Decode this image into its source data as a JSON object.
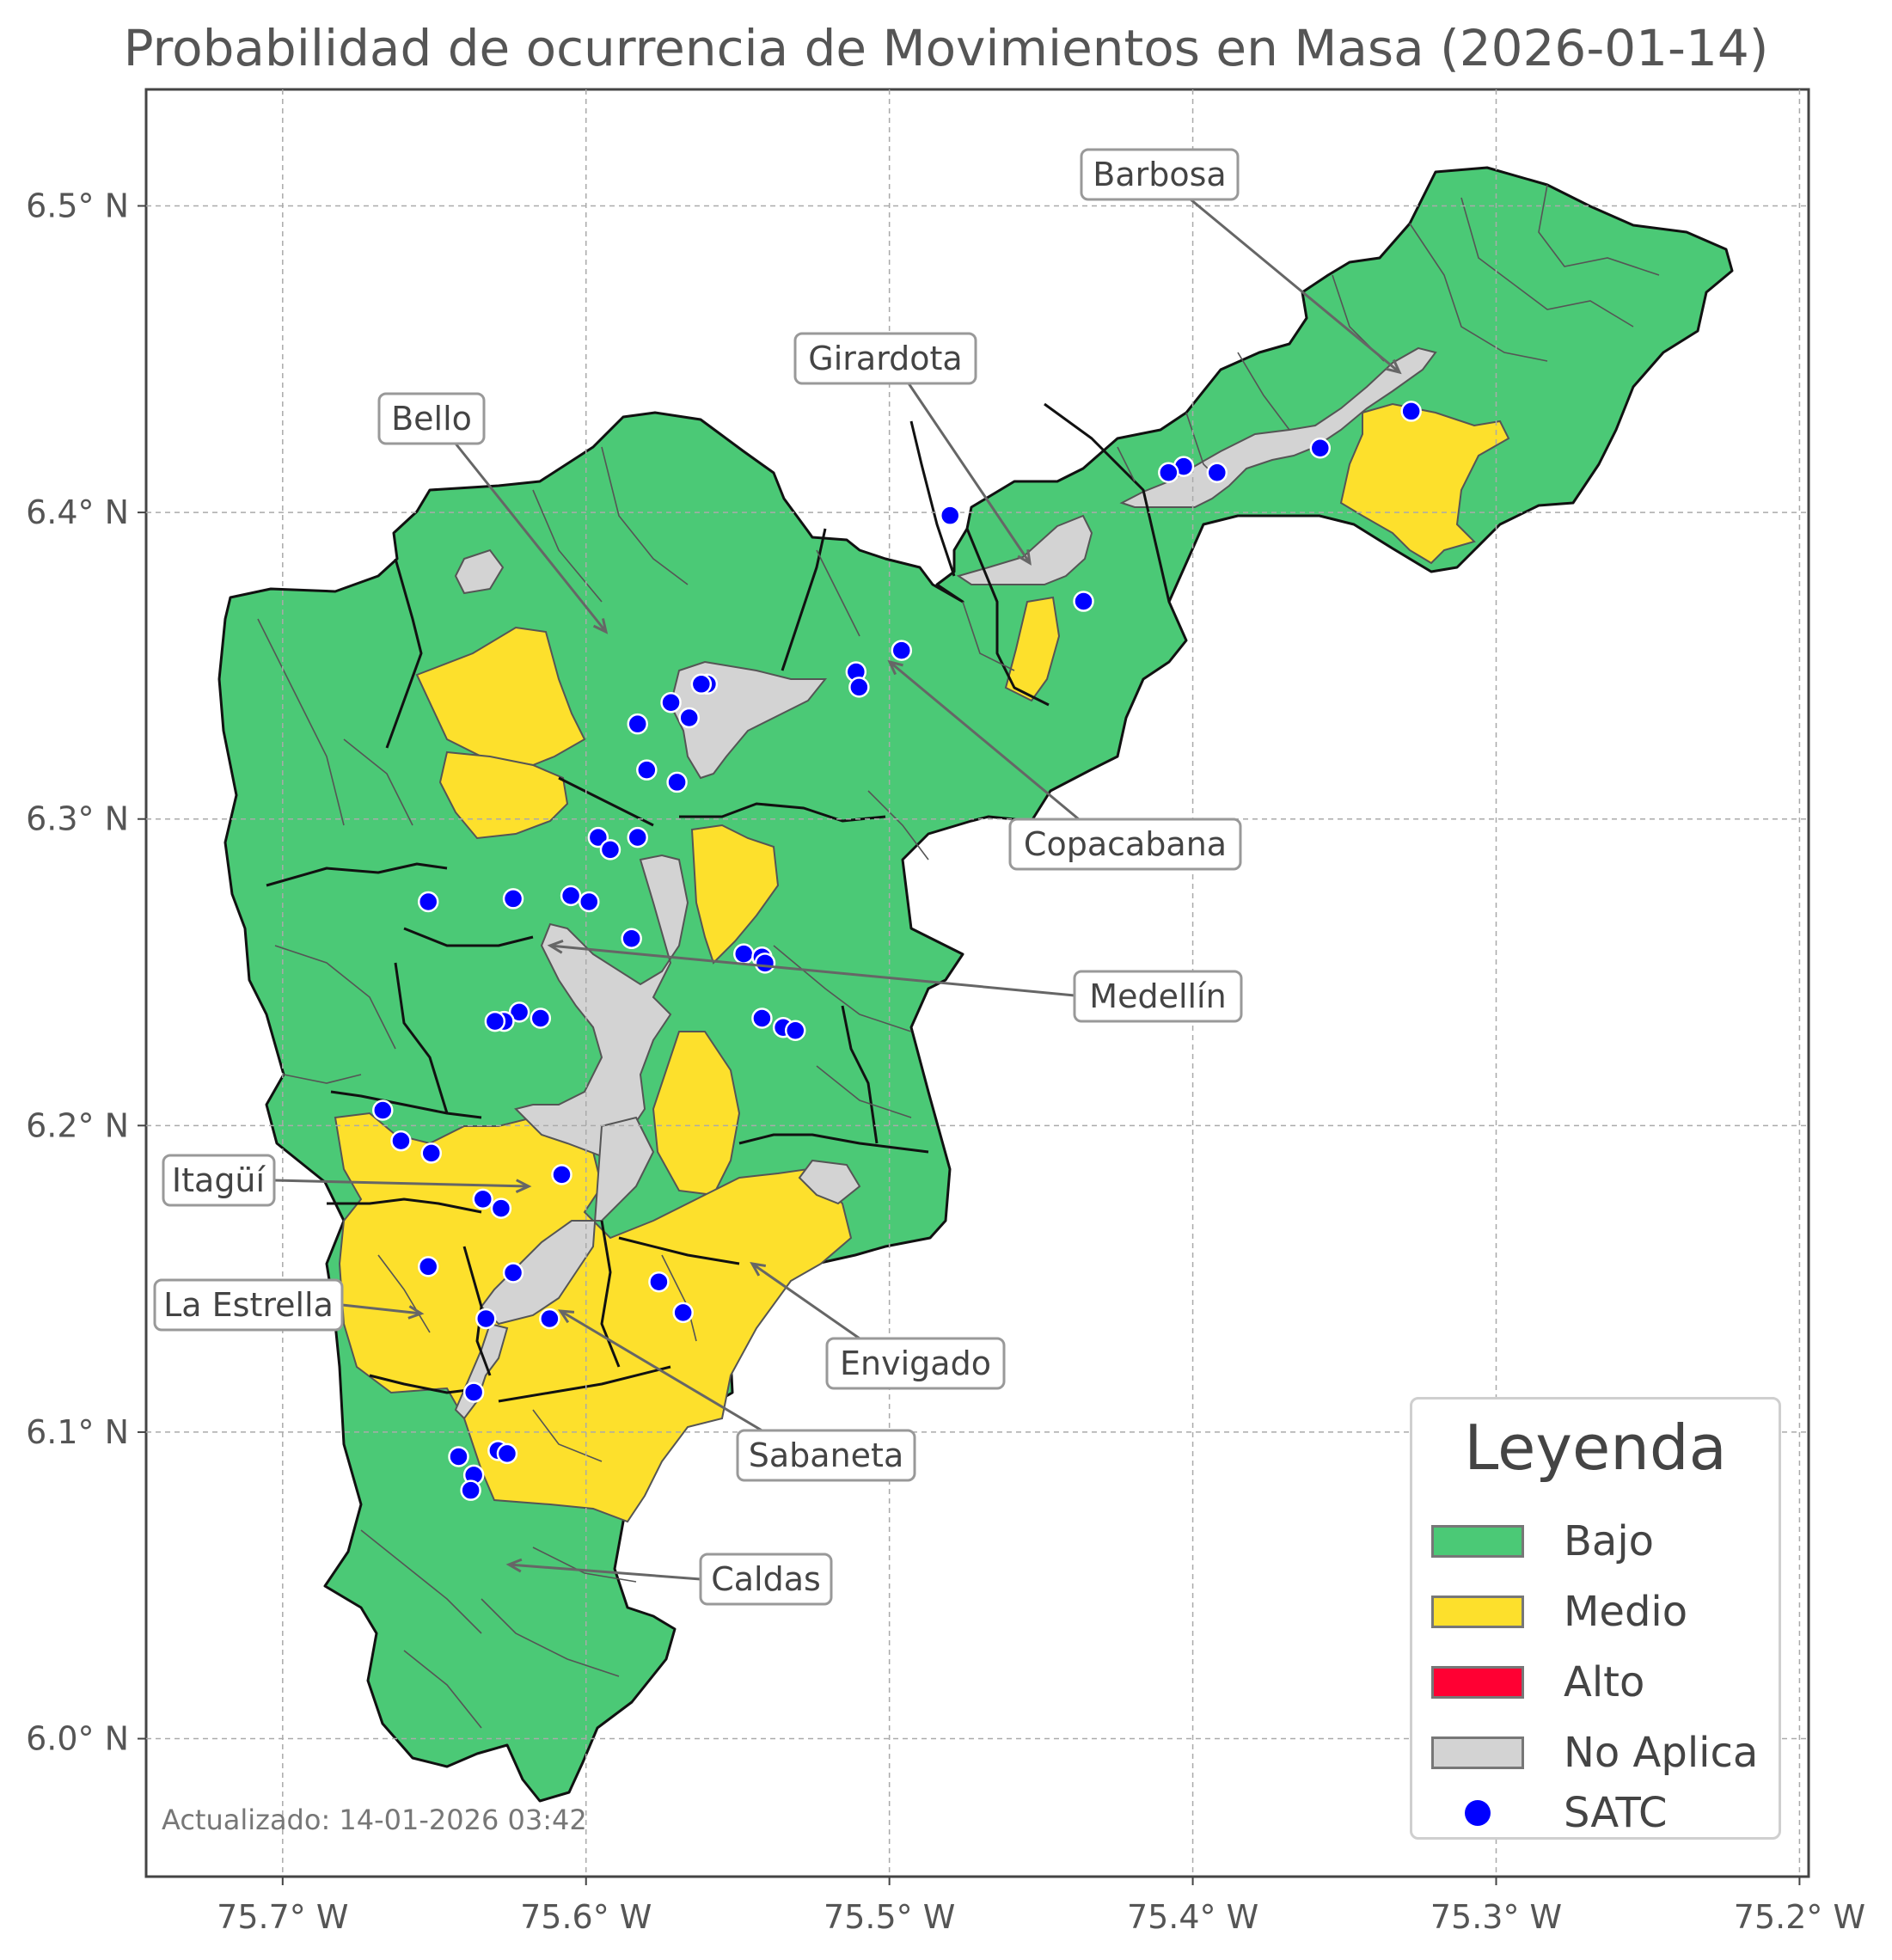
{
  "title": "Probabilidad de ocurrencia de Movimientos en Masa (2026-01-14)",
  "axes": {
    "lon_ticks": [
      "75.7° W",
      "75.6° W",
      "75.5° W",
      "75.4° W",
      "75.3° W",
      "75.2° W"
    ],
    "lat_ticks": [
      "6.5° N",
      "6.4° N",
      "6.3° N",
      "6.2° N",
      "6.1° N",
      "6.0° N"
    ],
    "lon_range": [
      -75.745,
      -75.197
    ],
    "lat_range": [
      5.955,
      6.538
    ],
    "grid": true
  },
  "municipality_labels": [
    {
      "name": "Barbosa",
      "lon": -75.33,
      "lat": 6.444
    },
    {
      "name": "Girardota",
      "lon": -75.45,
      "lat": 6.383
    },
    {
      "name": "Bello",
      "lon": -75.593,
      "lat": 6.361
    },
    {
      "name": "Copacabana",
      "lon": -75.5,
      "lat": 6.352
    },
    {
      "name": "Medellín",
      "lon": -75.615,
      "lat": 6.257
    },
    {
      "name": "Itagüí",
      "lon": -75.617,
      "lat": 6.179
    },
    {
      "name": "La Estrella",
      "lon": -75.636,
      "lat": 6.137
    },
    {
      "name": "Envigado",
      "lon": -75.545,
      "lat": 6.152
    },
    {
      "name": "Sabaneta",
      "lon": -75.608,
      "lat": 6.137
    },
    {
      "name": "Caldas",
      "lon": -75.624,
      "lat": 6.054
    }
  ],
  "legend": {
    "title": "Leyenda",
    "items": [
      {
        "label": "Bajo",
        "color": "#4bc976",
        "kind": "patch"
      },
      {
        "label": "Medio",
        "color": "#fde02c",
        "kind": "patch"
      },
      {
        "label": "Alto",
        "color": "#ff0033",
        "kind": "patch"
      },
      {
        "label": "No Aplica",
        "color": "#d3d3d3",
        "kind": "patch"
      },
      {
        "label": "SATC",
        "color": "#0000ff",
        "kind": "point"
      }
    ]
  },
  "satc_stations": [
    [
      -75.328,
      6.433
    ],
    [
      -75.358,
      6.421
    ],
    [
      -75.392,
      6.413
    ],
    [
      -75.403,
      6.415
    ],
    [
      -75.408,
      6.413
    ],
    [
      -75.48,
      6.399
    ],
    [
      -75.436,
      6.371
    ],
    [
      -75.496,
      6.355
    ],
    [
      -75.511,
      6.348
    ],
    [
      -75.51,
      6.343
    ],
    [
      -75.56,
      6.344
    ],
    [
      -75.562,
      6.344
    ],
    [
      -75.572,
      6.338
    ],
    [
      -75.566,
      6.333
    ],
    [
      -75.583,
      6.331
    ],
    [
      -75.58,
      6.316
    ],
    [
      -75.57,
      6.312
    ],
    [
      -75.596,
      6.294
    ],
    [
      -75.583,
      6.294
    ],
    [
      -75.592,
      6.29
    ],
    [
      -75.652,
      6.273
    ],
    [
      -75.624,
      6.274
    ],
    [
      -75.605,
      6.275
    ],
    [
      -75.599,
      6.273
    ],
    [
      -75.585,
      6.261
    ],
    [
      -75.548,
      6.256
    ],
    [
      -75.542,
      6.255
    ],
    [
      -75.541,
      6.253
    ],
    [
      -75.542,
      6.235
    ],
    [
      -75.535,
      6.232
    ],
    [
      -75.531,
      6.231
    ],
    [
      -75.622,
      6.237
    ],
    [
      -75.627,
      6.234
    ],
    [
      -75.63,
      6.234
    ],
    [
      -75.615,
      6.235
    ],
    [
      -75.667,
      6.205
    ],
    [
      -75.661,
      6.195
    ],
    [
      -75.651,
      6.191
    ],
    [
      -75.608,
      6.184
    ],
    [
      -75.634,
      6.176
    ],
    [
      -75.628,
      6.173
    ],
    [
      -75.652,
      6.154
    ],
    [
      -75.624,
      6.152
    ],
    [
      -75.576,
      6.149
    ],
    [
      -75.568,
      6.139
    ],
    [
      -75.633,
      6.137
    ],
    [
      -75.612,
      6.137
    ],
    [
      -75.637,
      6.113
    ],
    [
      -75.629,
      6.094
    ],
    [
      -75.626,
      6.093
    ],
    [
      -75.642,
      6.092
    ],
    [
      -75.637,
      6.086
    ],
    [
      -75.638,
      6.081
    ]
  ],
  "updated_text": "Actualizado: 14-01-2026 03:42"
}
